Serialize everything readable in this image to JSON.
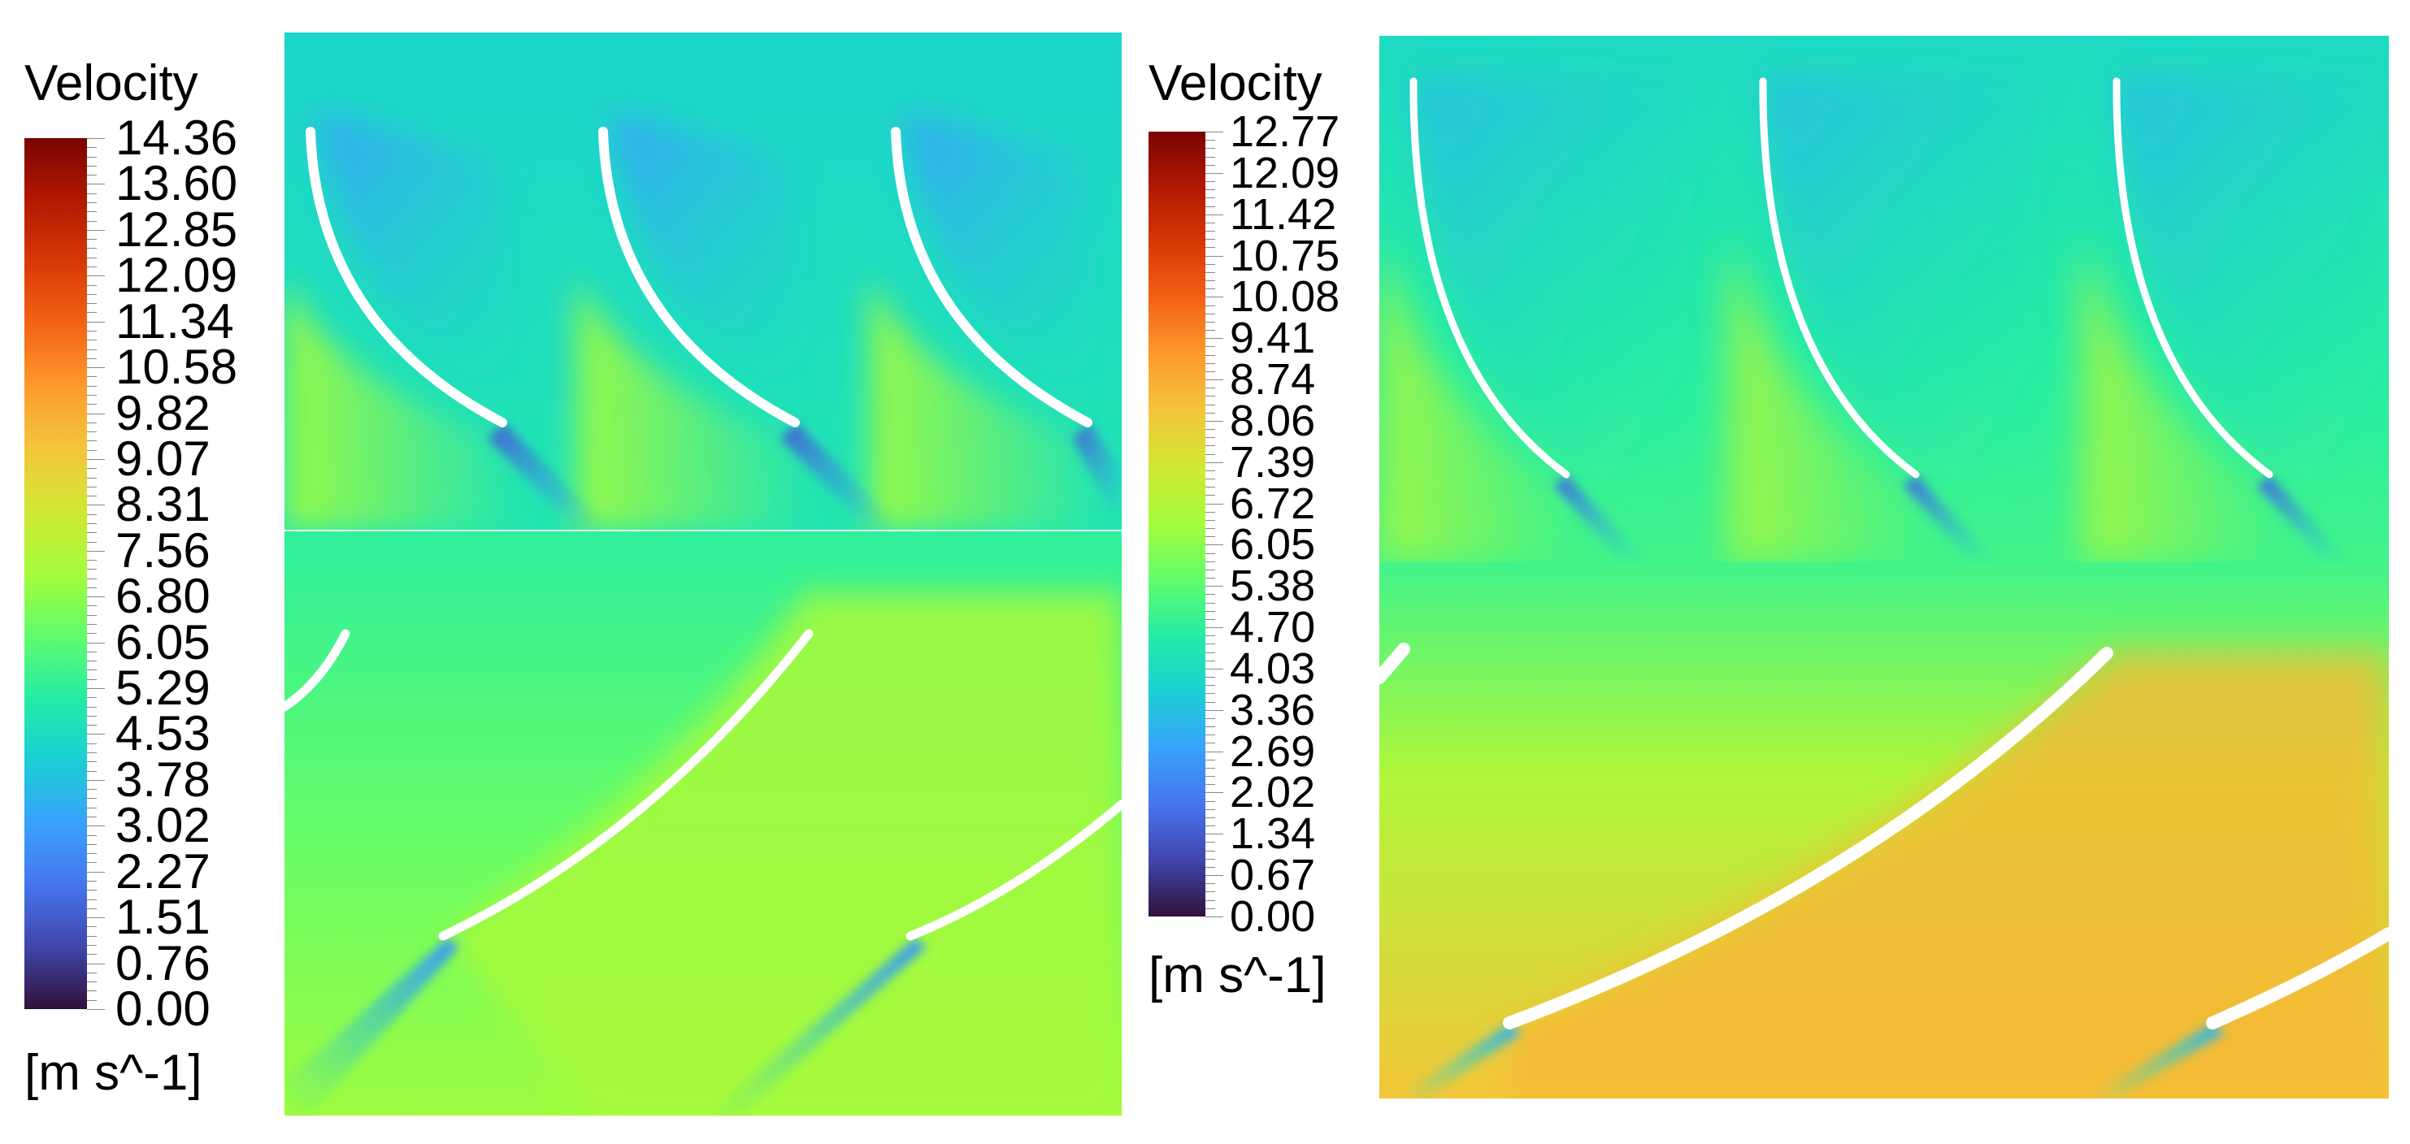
{
  "colors": {
    "colormap": [
      "#30123b",
      "#4145ab",
      "#4675ed",
      "#39a2fc",
      "#1bcfd4",
      "#24eca6",
      "#61fc6c",
      "#a4fc3b",
      "#d1e834",
      "#f3c63a",
      "#fe9b2d",
      "#f36315",
      "#d93806",
      "#b11901",
      "#7a0402"
    ],
    "blade": "#ffffff",
    "background": "#ffffff"
  },
  "legends": [
    {
      "title": "Velocity",
      "unit": "[m s^-1]",
      "ticks": [
        "14.36",
        "13.60",
        "12.85",
        "12.09",
        "11.34",
        "10.58",
        "9.82",
        "9.07",
        "8.31",
        "7.56",
        "6.80",
        "6.05",
        "5.29",
        "4.53",
        "3.78",
        "3.02",
        "2.27",
        "1.51",
        "0.76",
        "0.00"
      ]
    },
    {
      "title": "Velocity",
      "unit": "[m s^-1]",
      "ticks": [
        "12.77",
        "12.09",
        "11.42",
        "10.75",
        "10.08",
        "9.41",
        "8.74",
        "8.06",
        "7.39",
        "6.72",
        "6.05",
        "5.38",
        "4.70",
        "4.03",
        "3.36",
        "2.69",
        "2.02",
        "1.34",
        "0.67",
        "0.00"
      ]
    }
  ],
  "panels": [
    {
      "field_max": 14.36,
      "upper_level": 4.6,
      "lower_level": 6.8,
      "lower_far_level": 7.4
    },
    {
      "field_max": 12.77,
      "upper_level": 4.5,
      "lower_level": 6.9,
      "lower_far_level": 8.9
    }
  ]
}
